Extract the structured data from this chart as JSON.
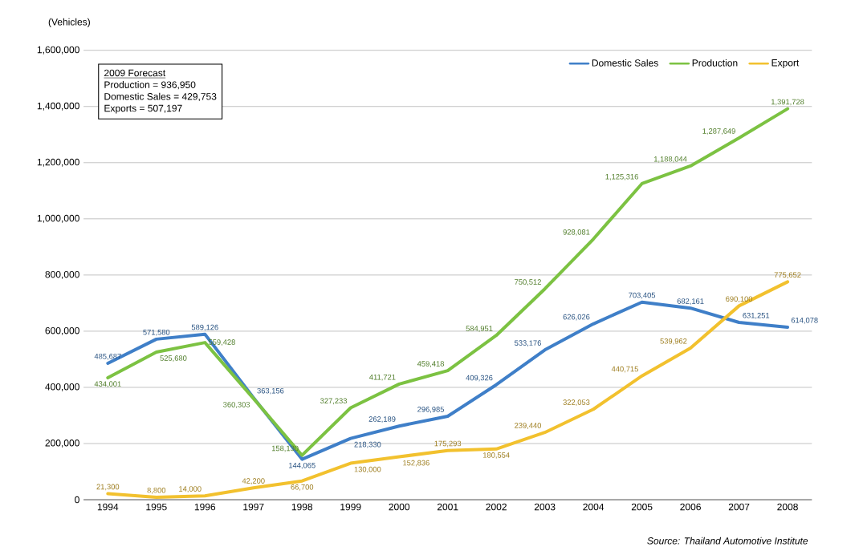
{
  "chart_data": {
    "type": "line",
    "ylabel": "(Vehicles)",
    "categories": [
      "1994",
      "1995",
      "1996",
      "1997",
      "1998",
      "1999",
      "2000",
      "2001",
      "2002",
      "2003",
      "2004",
      "2005",
      "2006",
      "2007",
      "2008"
    ],
    "series": [
      {
        "name": "Domestic Sales",
        "color": "#3f7fc8",
        "values": [
          485687,
          571580,
          589126,
          363156,
          144065,
          218330,
          262189,
          296985,
          409326,
          533176,
          626026,
          703405,
          682161,
          631251,
          614078
        ],
        "value_labels": [
          "485,687",
          "571,580",
          "589,126",
          "363,156",
          "144,065",
          "218,330",
          "262,189",
          "296,985",
          "409,326",
          "533,176",
          "626,026",
          "703,405",
          "682,161",
          "631,251",
          "614,078"
        ]
      },
      {
        "name": "Production",
        "color": "#7cc242",
        "values": [
          434001,
          525680,
          559428,
          360303,
          158130,
          327233,
          411721,
          459418,
          584951,
          750512,
          928081,
          1125316,
          1188044,
          1287649,
          1391728
        ],
        "value_labels": [
          "434,001",
          "525,680",
          "559,428",
          "360,303",
          "158,130",
          "327,233",
          "411,721",
          "459,418",
          "584,951",
          "750,512",
          "928,081",
          "1,125,316",
          "1,188,044",
          "1,287,649",
          "1,391,728"
        ]
      },
      {
        "name": "Export",
        "color": "#f2c12e",
        "values": [
          21300,
          8800,
          14000,
          42200,
          66700,
          130000,
          152836,
          175293,
          180554,
          239440,
          322053,
          440715,
          539962,
          690100,
          775652
        ],
        "value_labels": [
          "21,300",
          "8,800",
          "14,000",
          "42,200",
          "66,700",
          "130,000",
          "152,836",
          "175,293",
          "180,554",
          "239,440",
          "322,053",
          "440,715",
          "539,962",
          "690,100",
          "775,652"
        ]
      }
    ],
    "ylim": [
      0,
      1600000
    ],
    "yticks": [
      0,
      {
        "value": 200000,
        "label": "200,000"
      },
      {
        "value": 400000,
        "label": "400,000"
      },
      {
        "value": 600000,
        "label": "600,000"
      },
      {
        "value": 800000,
        "label": "800,000"
      },
      {
        "value": 1000000,
        "label": "1,000,000"
      },
      {
        "value": 1200000,
        "label": "1,200,000"
      },
      {
        "value": 1400000,
        "label": "1,400,000"
      },
      {
        "value": 1600000,
        "label": "1,600,000"
      }
    ],
    "grid": "y",
    "legend": "top right",
    "annotations": [
      "2009 Forecast",
      "Production = 936,950",
      "Domestic Sales = 429,753",
      "Exports = 507,197",
      "Source: Thailand Automotive Institute"
    ]
  }
}
